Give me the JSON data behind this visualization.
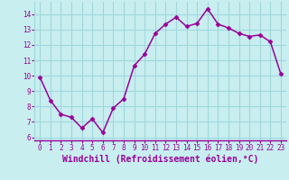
{
  "x": [
    0,
    1,
    2,
    3,
    4,
    5,
    6,
    7,
    8,
    9,
    10,
    11,
    12,
    13,
    14,
    15,
    16,
    17,
    18,
    19,
    20,
    21,
    22,
    23
  ],
  "y": [
    9.9,
    8.4,
    7.5,
    7.3,
    6.6,
    7.2,
    6.3,
    7.9,
    8.5,
    10.65,
    11.4,
    12.75,
    13.35,
    13.8,
    13.2,
    13.4,
    14.35,
    13.35,
    13.1,
    12.75,
    12.55,
    12.65,
    12.2,
    10.1
  ],
  "line_color": "#990099",
  "marker": "D",
  "marker_size": 2.5,
  "bg_color": "#c8eef0",
  "grid_color": "#a0d8dc",
  "xlabel": "Windchill (Refroidissement éolien,°C)",
  "xlabel_color": "#990099",
  "ylabel_ticks": [
    6,
    7,
    8,
    9,
    10,
    11,
    12,
    13,
    14
  ],
  "ylim": [
    5.8,
    14.8
  ],
  "xlim": [
    -0.5,
    23.5
  ],
  "xtick_labels": [
    "0",
    "1",
    "2",
    "3",
    "4",
    "5",
    "6",
    "7",
    "8",
    "9",
    "10",
    "11",
    "12",
    "13",
    "14",
    "15",
    "16",
    "17",
    "18",
    "19",
    "20",
    "21",
    "22",
    "23"
  ],
  "tick_color": "#990099",
  "tick_fontsize": 5.5,
  "xlabel_fontsize": 7.0,
  "linewidth": 1.1
}
